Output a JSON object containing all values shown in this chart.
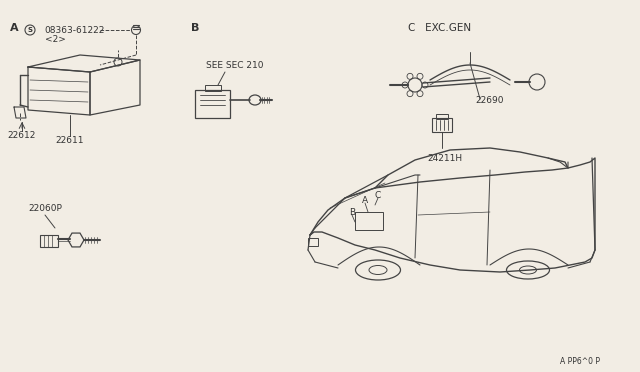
{
  "bg_color": "#f2ede4",
  "line_color": "#444444",
  "text_color": "#333333",
  "figsize": [
    6.4,
    3.72
  ],
  "dpi": 100,
  "footer": "A PP6^0 P",
  "section_A_label": "A",
  "section_B_label": "B",
  "section_C_label": "C   EXC.GEN",
  "bolt_label": "08363-61222",
  "bolt_label2": "<2>",
  "ecu_bracket_label": "22612",
  "ecu_label": "22611",
  "see_sec_label": "SEE SEC 210",
  "o2_label": "22690",
  "conn_label": "24211H",
  "sensor_label": "22060P",
  "car_A": "A",
  "car_B": "B",
  "car_C": "C"
}
